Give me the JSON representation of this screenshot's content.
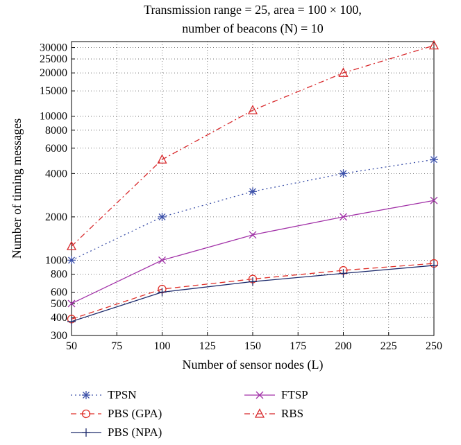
{
  "chart_data": {
    "type": "line",
    "title_line1": "Transmission range = 25, area = 100 × 100,",
    "title_line2": "number of beacons (N) = 10",
    "xlabel": "Number of sensor nodes (L)",
    "ylabel": "Number of timing messages",
    "xlim": [
      50,
      250
    ],
    "ylim": [
      300,
      33000
    ],
    "yscale": "log",
    "grid": true,
    "legend_position": "below",
    "x_ticks": [
      "50",
      "75",
      "100",
      "125",
      "150",
      "175",
      "200",
      "225",
      "250"
    ],
    "y_ticks": [
      "300",
      "400",
      "500",
      "600",
      "800",
      "1000",
      "2000",
      "4000",
      "6000",
      "8000",
      "10000",
      "15000",
      "20000",
      "25000",
      "30000"
    ],
    "x": [
      50,
      100,
      150,
      200,
      250
    ],
    "series": [
      {
        "name": "TPSN",
        "values": [
          1000,
          2000,
          3000,
          4000,
          5000
        ],
        "color": "#3a4fa8",
        "dash": "2,4",
        "marker": "asterisk"
      },
      {
        "name": "PBS (GPA)",
        "values": [
          390,
          630,
          740,
          850,
          950
        ],
        "color": "#e0312a",
        "dash": "8,5",
        "marker": "circle"
      },
      {
        "name": "PBS (NPA)",
        "values": [
          375,
          600,
          710,
          810,
          920
        ],
        "color": "#1c2a6b",
        "dash": "",
        "marker": "plus"
      },
      {
        "name": "FTSP",
        "values": [
          500,
          1000,
          1500,
          2000,
          2600
        ],
        "color": "#a232a8",
        "dash": "",
        "marker": "cross"
      },
      {
        "name": "RBS",
        "values": [
          1250,
          5000,
          11000,
          20000,
          31000
        ],
        "color": "#d8282b",
        "dash": "8,4,2,4",
        "marker": "triangle"
      }
    ]
  }
}
